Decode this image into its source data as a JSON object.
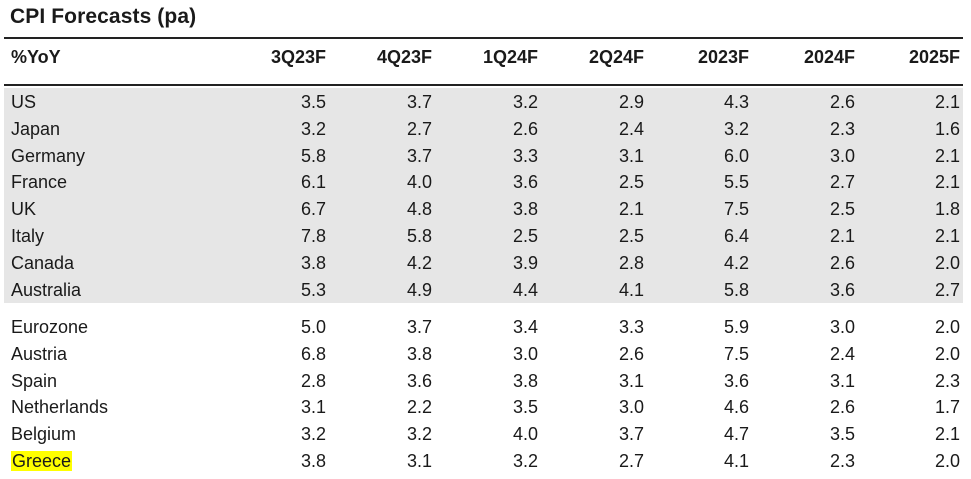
{
  "title": "CPI Forecasts (pa)",
  "chart_data": {
    "type": "table",
    "title": "CPI Forecasts (pa)",
    "columns": [
      "%YoY",
      "3Q23F",
      "4Q23F",
      "1Q24F",
      "2Q24F",
      "2023F",
      "2024F",
      "2025F"
    ],
    "groups": [
      {
        "shaded": true,
        "rows": [
          {
            "country": "US",
            "values": [
              "3.5",
              "3.7",
              "3.2",
              "2.9",
              "4.3",
              "2.6",
              "2.1"
            ]
          },
          {
            "country": "Japan",
            "values": [
              "3.2",
              "2.7",
              "2.6",
              "2.4",
              "3.2",
              "2.3",
              "1.6"
            ]
          },
          {
            "country": "Germany",
            "values": [
              "5.8",
              "3.7",
              "3.3",
              "3.1",
              "6.0",
              "3.0",
              "2.1"
            ]
          },
          {
            "country": "France",
            "values": [
              "6.1",
              "4.0",
              "3.6",
              "2.5",
              "5.5",
              "2.7",
              "2.1"
            ]
          },
          {
            "country": "UK",
            "values": [
              "6.7",
              "4.8",
              "3.8",
              "2.1",
              "7.5",
              "2.5",
              "1.8"
            ]
          },
          {
            "country": "Italy",
            "values": [
              "7.8",
              "5.8",
              "2.5",
              "2.5",
              "6.4",
              "2.1",
              "2.1"
            ]
          },
          {
            "country": "Canada",
            "values": [
              "3.8",
              "4.2",
              "3.9",
              "2.8",
              "4.2",
              "2.6",
              "2.0"
            ]
          },
          {
            "country": "Australia",
            "values": [
              "5.3",
              "4.9",
              "4.4",
              "4.1",
              "5.8",
              "3.6",
              "2.7"
            ]
          }
        ]
      },
      {
        "shaded": false,
        "rows": [
          {
            "country": "Eurozone",
            "values": [
              "5.0",
              "3.7",
              "3.4",
              "3.3",
              "5.9",
              "3.0",
              "2.0"
            ]
          },
          {
            "country": "Austria",
            "values": [
              "6.8",
              "3.8",
              "3.0",
              "2.6",
              "7.5",
              "2.4",
              "2.0"
            ]
          },
          {
            "country": "Spain",
            "values": [
              "2.8",
              "3.6",
              "3.8",
              "3.1",
              "3.6",
              "3.1",
              "2.3"
            ]
          },
          {
            "country": "Netherlands",
            "values": [
              "3.1",
              "2.2",
              "3.5",
              "3.0",
              "4.6",
              "2.6",
              "1.7"
            ]
          },
          {
            "country": "Belgium",
            "values": [
              "3.2",
              "3.2",
              "4.0",
              "3.7",
              "4.7",
              "3.5",
              "2.1"
            ]
          },
          {
            "country": "Greece",
            "values": [
              "3.8",
              "3.1",
              "3.2",
              "2.7",
              "4.1",
              "2.3",
              "2.0"
            ],
            "highlighted": true
          }
        ]
      }
    ]
  },
  "colors": {
    "shaded_group": "#e6e6e6",
    "highlight": "#ffff00",
    "rule": "#222222"
  }
}
